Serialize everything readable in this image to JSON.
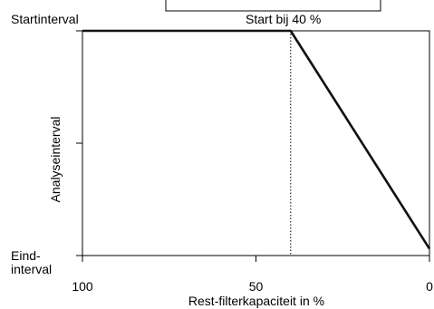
{
  "chart_data": {
    "type": "line",
    "title": "",
    "xlabel": "Rest-filterkapaciteit in %",
    "ylabel": "Analyseinterval",
    "xlim": [
      100,
      0
    ],
    "x_reversed": true,
    "x_ticks": [
      100,
      50,
      0
    ],
    "x_tick_labels": [
      "100",
      "50",
      "0"
    ],
    "y_ticks": [
      {
        "value": 1,
        "label": "Startinterval"
      },
      {
        "value": 0.5,
        "label": ""
      },
      {
        "value": 0,
        "label": "Eind-\ninterval"
      }
    ],
    "ylim": [
      0,
      1
    ],
    "grid": false,
    "series": [
      {
        "x": [
          100,
          40,
          0
        ],
        "y": [
          1,
          1,
          0.03
        ],
        "color": "#111111"
      }
    ],
    "annotations": [
      {
        "text": "Start bij 40 %",
        "x": 40
      }
    ],
    "marker_line": {
      "x": 40,
      "style": "dotted"
    }
  }
}
